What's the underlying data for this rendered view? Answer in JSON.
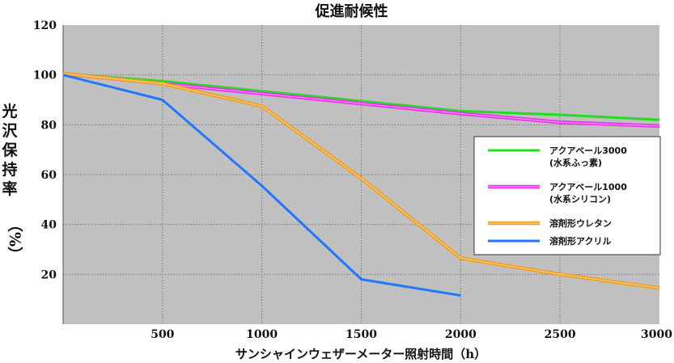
{
  "chart_data": {
    "type": "line",
    "title": "促進耐候性",
    "xlabel": "サンシャインウェザーメーター照射時間（h）",
    "ylabel_chars": [
      "光",
      "沢",
      "保",
      "持",
      "率"
    ],
    "ylabel_unit": "（%）",
    "xlim": [
      0,
      3000
    ],
    "ylim": [
      0,
      120
    ],
    "x_ticks": [
      500,
      1000,
      1500,
      2000,
      2500,
      3000
    ],
    "y_ticks": [
      20,
      40,
      60,
      80,
      100,
      120
    ],
    "grid": true,
    "legend_position": "right",
    "colors": {
      "plot_background": "#c0c0c0",
      "grid": "#777777"
    },
    "series": [
      {
        "legend_lines": [
          "アクアベール3000",
          "(水系ふっ素)"
        ],
        "color": "#22dd22",
        "style": "solid",
        "points": [
          [
            0,
            100.5
          ],
          [
            500,
            97.5
          ],
          [
            1000,
            93.5
          ],
          [
            1500,
            89.5
          ],
          [
            2000,
            85.5
          ],
          [
            2500,
            84
          ],
          [
            3000,
            82
          ]
        ]
      },
      {
        "legend_lines": [
          "アクアベール1000",
          "(水系シリコン)"
        ],
        "color": "#ee33ee",
        "style": "double",
        "points": [
          [
            0,
            100.5
          ],
          [
            500,
            96.5
          ],
          [
            1000,
            92.5
          ],
          [
            1500,
            88.5
          ],
          [
            2000,
            84.5
          ],
          [
            2500,
            81
          ],
          [
            3000,
            79.5
          ]
        ]
      },
      {
        "legend_lines": [
          "溶剤形ウレタン"
        ],
        "color": "#f0a020",
        "style": "double",
        "points": [
          [
            0,
            100.5
          ],
          [
            500,
            96.5
          ],
          [
            1000,
            87.5
          ],
          [
            1500,
            58.5
          ],
          [
            2000,
            26.5
          ],
          [
            2500,
            20
          ],
          [
            3000,
            14.5
          ]
        ]
      },
      {
        "legend_lines": [
          "溶剤形アクリル"
        ],
        "color": "#2277ff",
        "style": "solid",
        "points": [
          [
            0,
            100
          ],
          [
            500,
            90
          ],
          [
            1000,
            55.5
          ],
          [
            1500,
            18
          ],
          [
            2000,
            11.5
          ]
        ]
      }
    ]
  }
}
